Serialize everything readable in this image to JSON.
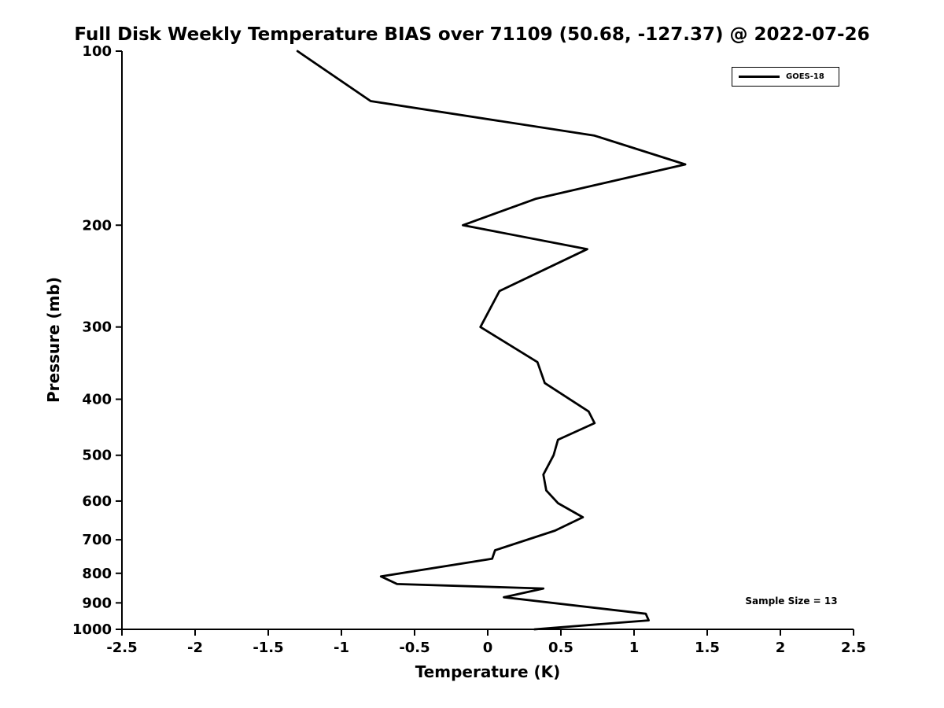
{
  "figure": {
    "background": "#ffffff"
  },
  "chart_data": {
    "type": "line",
    "title": "Full Disk Weekly Temperature BIAS over 71109 (50.68, -127.37) @ 2022-07-26",
    "xlabel": "Temperature (K)",
    "ylabel": "Pressure (mb)",
    "xlim": [
      -2.5,
      2.5
    ],
    "ylim_bottom_top": [
      1000,
      100
    ],
    "yscale": "log",
    "grid": false,
    "axis_color": "#000000",
    "x_ticks": [
      {
        "v": -2.5,
        "label": "-2.5"
      },
      {
        "v": -2,
        "label": "-2"
      },
      {
        "v": -1.5,
        "label": "-1.5"
      },
      {
        "v": -1,
        "label": "-1"
      },
      {
        "v": -0.5,
        "label": "-0.5"
      },
      {
        "v": 0,
        "label": "0"
      },
      {
        "v": 0.5,
        "label": "0.5"
      },
      {
        "v": 1,
        "label": "1"
      },
      {
        "v": 1.5,
        "label": "1.5"
      },
      {
        "v": 2,
        "label": "2"
      },
      {
        "v": 2.5,
        "label": "2.5"
      }
    ],
    "y_ticks": [
      {
        "v": 100,
        "label": "100"
      },
      {
        "v": 200,
        "label": "200"
      },
      {
        "v": 300,
        "label": "300"
      },
      {
        "v": 400,
        "label": "400"
      },
      {
        "v": 500,
        "label": "500"
      },
      {
        "v": 600,
        "label": "600"
      },
      {
        "v": 700,
        "label": "700"
      },
      {
        "v": 800,
        "label": "800"
      },
      {
        "v": 900,
        "label": "900"
      },
      {
        "v": 1000,
        "label": "1000"
      }
    ],
    "legend": {
      "position": "top-right",
      "border_color": "#000000"
    },
    "sample_size_label": "Sample Size = 13",
    "series": [
      {
        "name": "GOES-18",
        "color": "#000000",
        "line_width": 2.8,
        "points_format": [
          "pressure_mb",
          "bias_k"
        ],
        "points": [
          [
            100,
            -1.3
          ],
          [
            122,
            -0.8
          ],
          [
            140,
            0.73
          ],
          [
            157,
            1.35
          ],
          [
            180,
            0.33
          ],
          [
            200,
            -0.17
          ],
          [
            220,
            0.68
          ],
          [
            260,
            0.08
          ],
          [
            300,
            -0.05
          ],
          [
            345,
            0.34
          ],
          [
            375,
            0.39
          ],
          [
            420,
            0.69
          ],
          [
            440,
            0.73
          ],
          [
            470,
            0.48
          ],
          [
            500,
            0.45
          ],
          [
            540,
            0.38
          ],
          [
            575,
            0.4
          ],
          [
            605,
            0.48
          ],
          [
            640,
            0.65
          ],
          [
            675,
            0.46
          ],
          [
            730,
            0.05
          ],
          [
            755,
            0.03
          ],
          [
            810,
            -0.73
          ],
          [
            835,
            -0.62
          ],
          [
            850,
            0.38
          ],
          [
            880,
            0.11
          ],
          [
            940,
            1.08
          ],
          [
            965,
            1.1
          ],
          [
            1000,
            0.32
          ]
        ]
      }
    ]
  }
}
